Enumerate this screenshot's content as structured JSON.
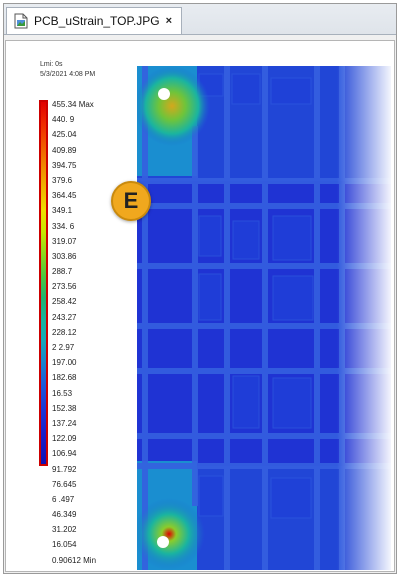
{
  "tab": {
    "icon": "image-file-icon",
    "title": "PCB_uStrain_TOP.JPG",
    "close": "×"
  },
  "image_meta": {
    "line1": "Lmi: 0s",
    "line2": "5/3/2021 4:08 PM"
  },
  "legend": {
    "labels": [
      "455.34 Max",
      "440. 9",
      "425.04",
      "409.89",
      "394.75",
      "379.6",
      "364.45",
      "349.1",
      "334. 6",
      "319.07",
      "303.86",
      "288.7",
      "273.56",
      "258.42",
      "243.27",
      "228.12",
      "2 2.97",
      "197.00",
      "182.68",
      "16.53",
      "152.38",
      "137.24",
      "122.09",
      "106.94",
      "91.792",
      "76.645",
      "6 .497",
      "46.349",
      "31.202",
      "16.054",
      "0.90612 Min"
    ],
    "colors": {
      "max": "#e10000",
      "min": "#1010b4"
    }
  },
  "marker": {
    "label": "E",
    "color": "#f0a81e"
  },
  "plot": {
    "background": "#1a2ecf"
  }
}
